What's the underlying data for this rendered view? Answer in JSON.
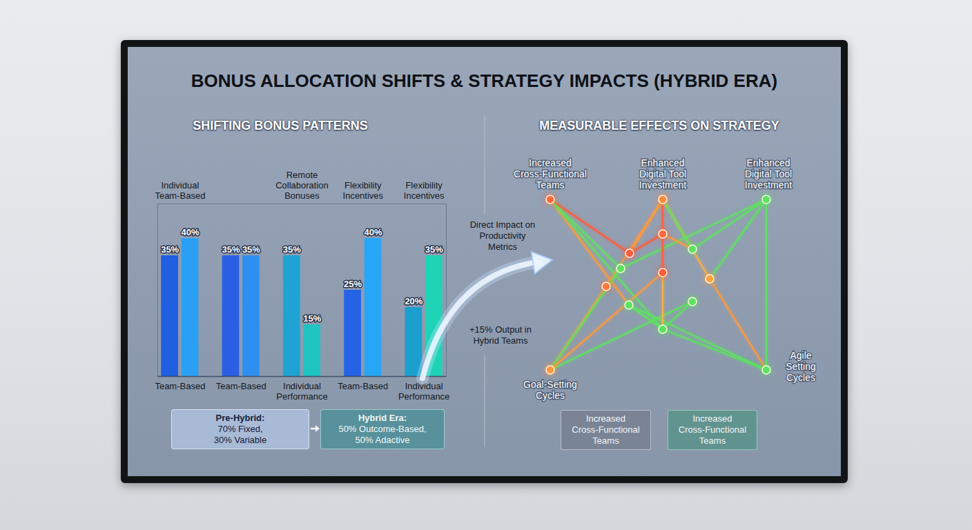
{
  "header": {
    "title": "BONUS ALLOCATION SHIFTS & STRATEGY IMPACTS (HYBRID ERA)"
  },
  "chart_data": {
    "type": "bar",
    "title": "SHIFTING BONUS PATTERNS",
    "categories": [
      "Team-Based",
      "Team-Based",
      "Individual Performance",
      "Team-Based",
      "Individual Performance"
    ],
    "group_titles": [
      "Individual Team-Based",
      null,
      "Remote Collaboration Bonuses",
      "Flexibility Incentives",
      "Flexibility Incentives"
    ],
    "series": [
      {
        "values": [
          35,
          35,
          35,
          25,
          20
        ],
        "value_labels": [
          "35%",
          "35%",
          "35%",
          "25%",
          "20%"
        ],
        "colors": [
          "#1f5fe0",
          "#2a5fe4",
          "#1fa3d4",
          "#2563e6",
          "#1a9fcf"
        ]
      },
      {
        "values": [
          40,
          35,
          15,
          40,
          35
        ],
        "value_labels": [
          "40%",
          "35%",
          "15%",
          "40%",
          "35%"
        ],
        "colors": [
          "#2aa0f5",
          "#2f8ff0",
          "#20c4c0",
          "#27a6f5",
          "#1fd3b6"
        ]
      }
    ],
    "ylim": [
      0,
      50
    ],
    "grid": false,
    "data_labels": true,
    "tick_labels": "x"
  },
  "annotations": [
    "Direct Impact on Productivity Metrics",
    "+15% Output in Hybrid Teams"
  ],
  "summary": [
    {
      "heading": "Pre-Hybrid:",
      "text": "70% Fixed, 30% Variable"
    },
    {
      "heading": "Hybrid Era:",
      "text": "50% Outcome-Based, 50% Adactive"
    }
  ],
  "diagram": {
    "title": "MEASURABLE EFFECTS ON STRATEGY",
    "labels": [
      "Increased Cross-Functional Teams",
      "Enhanced Digital Tool Investment",
      "Enhanced Digital Tool Investment",
      "Goal-Setting Cycles",
      "Agile Setting Cycles"
    ],
    "boxes": [
      "Increased Cross-Functional Teams",
      "Increased Cross-Functional Teams"
    ]
  }
}
